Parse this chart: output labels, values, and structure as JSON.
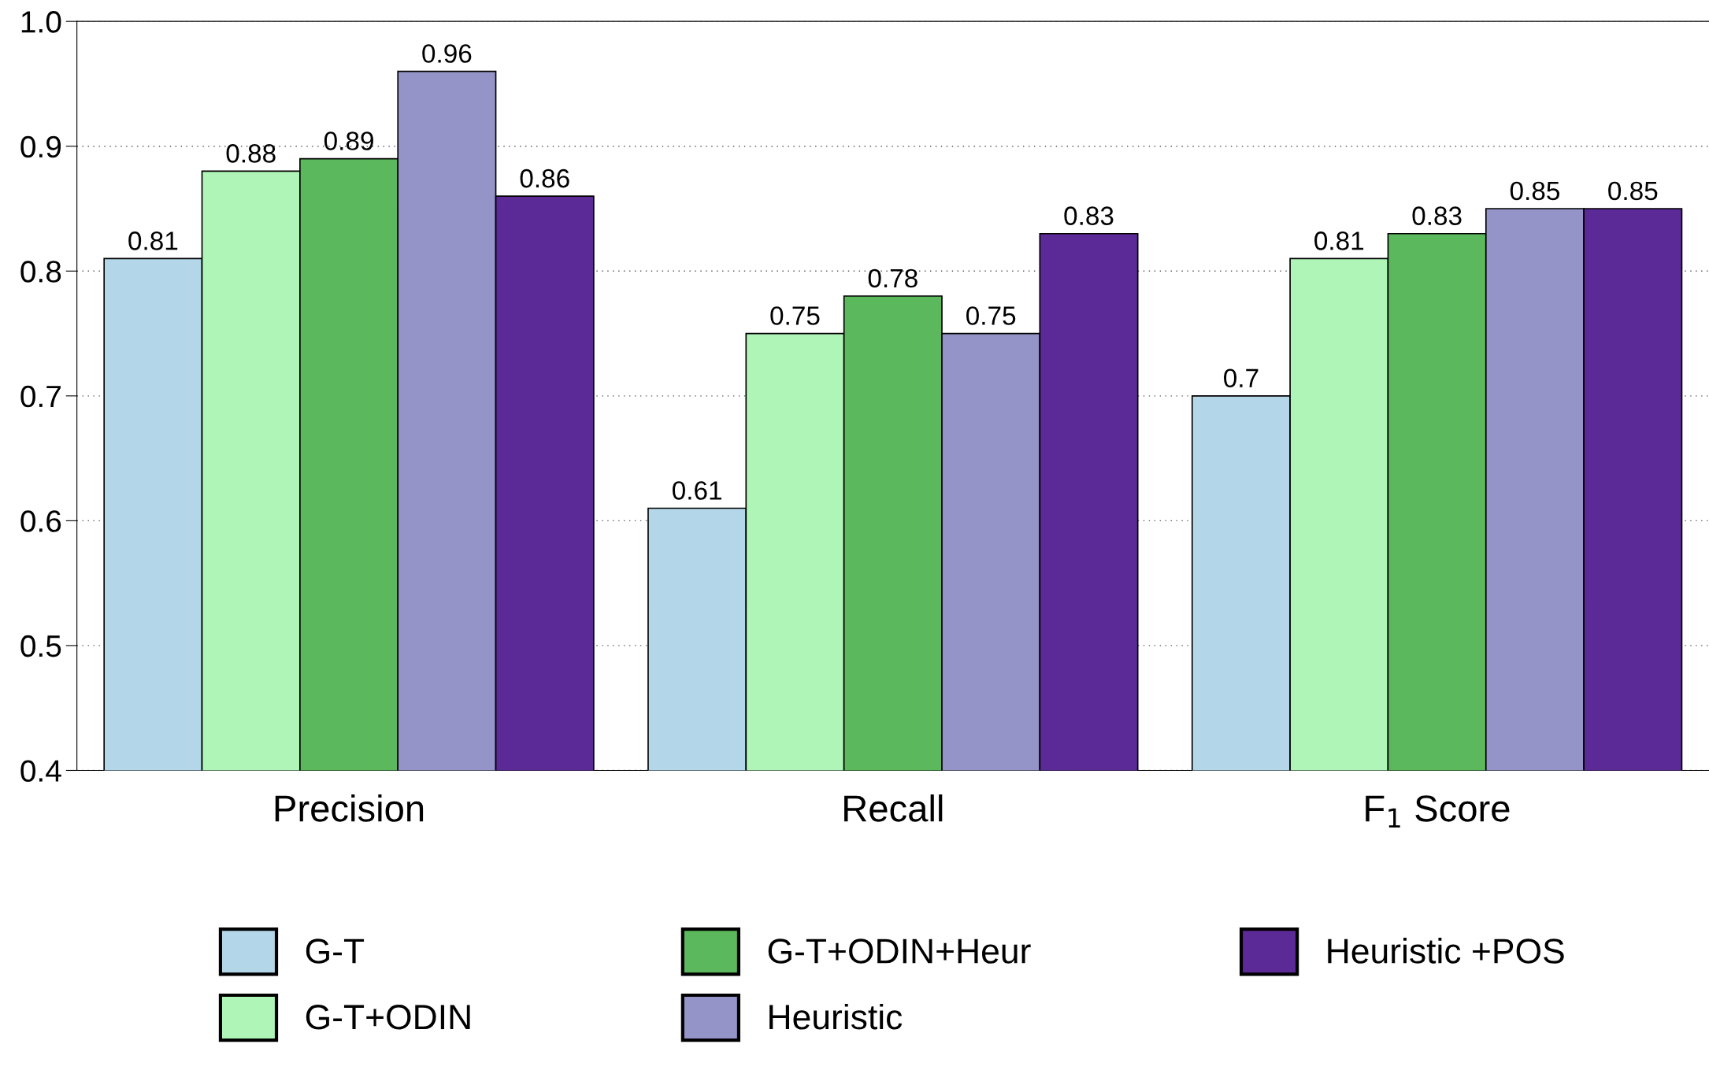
{
  "chart_data": {
    "type": "bar",
    "categories": [
      "Precision",
      "Recall",
      "F$_{1}$ Score"
    ],
    "series": [
      {
        "name": "G-T",
        "color": "#b3d7e8",
        "values": [
          0.81,
          0.61,
          0.7
        ]
      },
      {
        "name": "G-T+ODIN",
        "color": "#b0f5b8",
        "values": [
          0.88,
          0.75,
          0.81
        ]
      },
      {
        "name": "G-T+ODIN+Heur",
        "color": "#5cb85c",
        "values": [
          0.89,
          0.78,
          0.83
        ]
      },
      {
        "name": "Heuristic",
        "color": "#9494c8",
        "values": [
          0.96,
          0.75,
          0.85
        ]
      },
      {
        "name": "Heuristic +POS",
        "color": "#5c2a96",
        "values": [
          0.86,
          0.83,
          0.85
        ]
      }
    ],
    "ylim": [
      0.4,
      1.0
    ],
    "yticks": [
      0.4,
      0.5,
      0.6,
      0.7,
      0.8,
      0.9,
      {
        "value": 1.0,
        "label": "1.0"
      }
    ],
    "grid": "y",
    "legend": "bottom",
    "data_labels": true
  }
}
